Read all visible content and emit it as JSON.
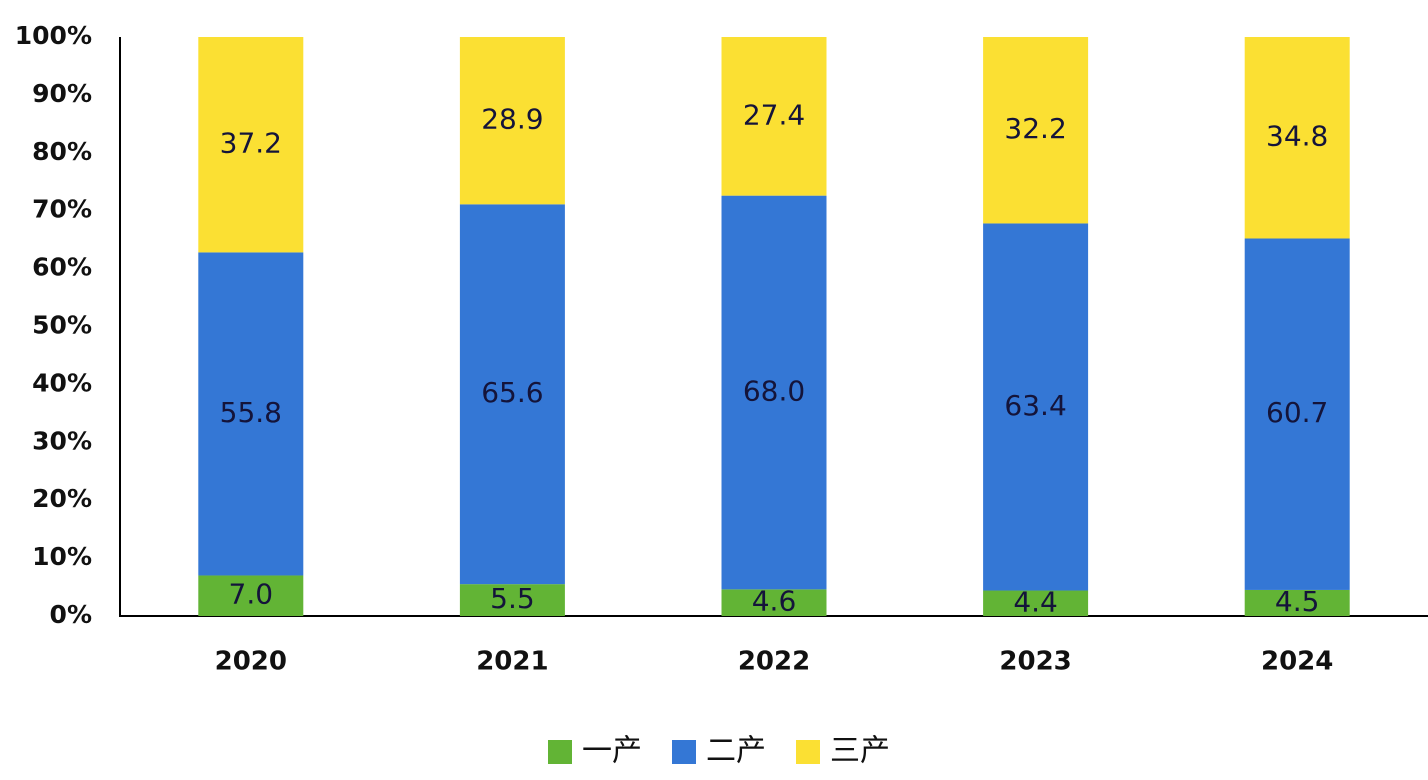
{
  "chart_data": {
    "type": "stacked_bar",
    "categories": [
      "2020",
      "2021",
      "2022",
      "2023",
      "2024"
    ],
    "series": [
      {
        "name": "一产",
        "color": "#62b435",
        "values": [
          7.0,
          5.5,
          4.6,
          4.4,
          4.5
        ],
        "value_labels": [
          "7.0",
          "5.5",
          "4.6",
          "4.4",
          "4.5"
        ]
      },
      {
        "name": "二产",
        "color": "#3477d5",
        "values": [
          55.8,
          65.6,
          68.0,
          63.4,
          60.7
        ],
        "value_labels": [
          "55.8",
          "65.6",
          "68.0",
          "63.4",
          "60.7"
        ]
      },
      {
        "name": "三产",
        "color": "#fbe033",
        "values": [
          37.2,
          28.9,
          27.4,
          32.2,
          34.8
        ],
        "value_labels": [
          "37.2",
          "28.9",
          "27.4",
          "32.2",
          "34.8"
        ]
      }
    ],
    "ylim": [
      0,
      100
    ],
    "yticks": [
      {
        "value": 0,
        "label": "0%"
      },
      {
        "value": 10,
        "label": "10%"
      },
      {
        "value": 20,
        "label": "20%"
      },
      {
        "value": 30,
        "label": "30%"
      },
      {
        "value": 40,
        "label": "40%"
      },
      {
        "value": 50,
        "label": "50%"
      },
      {
        "value": 60,
        "label": "60%"
      },
      {
        "value": 70,
        "label": "70%"
      },
      {
        "value": 80,
        "label": "80%"
      },
      {
        "value": 90,
        "label": "90%"
      },
      {
        "value": 100,
        "label": "100%"
      }
    ],
    "grid": false,
    "legend": "bottom"
  }
}
